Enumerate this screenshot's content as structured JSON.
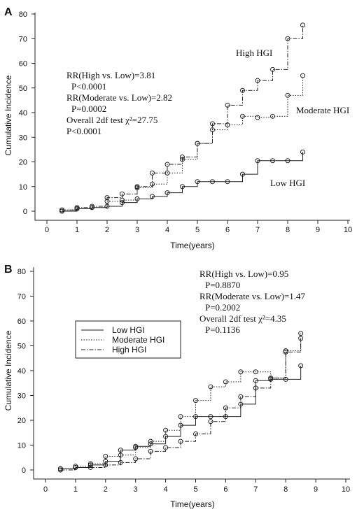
{
  "chart_data": [
    {
      "type": "line",
      "panel_label": "A",
      "xlabel": "Time(years)",
      "ylabel": "Cumulative Incidence",
      "xlim": [
        0,
        10
      ],
      "ylim": [
        0,
        80
      ],
      "xticks": [
        "0",
        "1",
        "2",
        "3",
        "4",
        "5",
        "6",
        "7",
        "8",
        "9",
        "10"
      ],
      "yticks": [
        "0",
        "10",
        "20",
        "30",
        "40",
        "50",
        "60",
        "70",
        "80"
      ],
      "annotations": [
        {
          "text": "RR(High vs. Low)=3.81"
        },
        {
          "text": "P<0.0001"
        },
        {
          "text": "RR(Moderate vs. Low)=2.82"
        },
        {
          "text": "P=0.0002"
        },
        {
          "text": "Overall 2df test χ²=27.75"
        },
        {
          "text": "P<0.0001"
        }
      ],
      "series": [
        {
          "name": "High HGI",
          "line_style": "dash-dot",
          "x": [
            0.5,
            1,
            1.5,
            2,
            2.5,
            3,
            3.5,
            4,
            4.5,
            5,
            5.5,
            6,
            6.5,
            7,
            7.5,
            8,
            8.5
          ],
          "y": [
            0.5,
            1.5,
            2,
            5.5,
            7,
            10,
            15.5,
            19,
            22,
            27.5,
            35.5,
            43,
            49,
            53,
            57.5,
            70,
            75.5
          ]
        },
        {
          "name": "Moderate HGI",
          "line_style": "dotted",
          "x": [
            0.5,
            1,
            1.5,
            2,
            2.5,
            3,
            3.5,
            4,
            4.5,
            5,
            5.5,
            6,
            6.5,
            7,
            7.5,
            8,
            8.5
          ],
          "y": [
            0.5,
            1,
            1.5,
            4,
            4.5,
            9.5,
            11,
            15.5,
            21,
            27.5,
            33,
            35,
            38.5,
            38,
            38.5,
            47,
            55
          ]
        },
        {
          "name": "Low HGI",
          "line_style": "solid",
          "x": [
            0.5,
            1,
            1.5,
            2,
            2.5,
            3,
            3.5,
            4,
            4.5,
            5,
            5.5,
            6,
            6.5,
            7,
            7.5,
            8,
            8.5
          ],
          "y": [
            0,
            1,
            1.5,
            2,
            3.5,
            5,
            6,
            7.5,
            10,
            12,
            12,
            12,
            15,
            20.5,
            20.5,
            20.5,
            24
          ]
        }
      ]
    },
    {
      "type": "line",
      "panel_label": "B",
      "xlabel": "Time(years)",
      "ylabel": "Cumulative Incidence",
      "xlim": [
        0,
        10
      ],
      "ylim": [
        0,
        80
      ],
      "xticks": [
        "0",
        "1",
        "2",
        "3",
        "4",
        "5",
        "6",
        "7",
        "8",
        "9",
        "10"
      ],
      "yticks": [
        "0",
        "10",
        "20",
        "30",
        "40",
        "50",
        "60",
        "70",
        "80"
      ],
      "legend": {
        "placement": "upper-left",
        "entries": [
          "Low HGI",
          "Moderate HGI",
          "High HGI"
        ]
      },
      "annotations": [
        {
          "text": "RR(High vs. Low)=0.95"
        },
        {
          "text": "P=0.8870"
        },
        {
          "text": "RR(Moderate vs. Low)=1.47"
        },
        {
          "text": "P=0.2002"
        },
        {
          "text": "Overall 2df test χ²=4.35"
        },
        {
          "text": "P=0.1136"
        }
      ],
      "series": [
        {
          "name": "Low HGI",
          "line_style": "solid",
          "x": [
            0.5,
            1,
            1.5,
            2,
            2.5,
            3,
            3.5,
            4,
            4.5,
            5,
            5.5,
            6,
            6.5,
            7,
            7.5,
            8,
            8.5
          ],
          "y": [
            0.5,
            1,
            2,
            3.5,
            8,
            9.5,
            10.5,
            13.5,
            18,
            21.5,
            21.5,
            21.5,
            26.5,
            36,
            36.5,
            36.5,
            42
          ]
        },
        {
          "name": "Moderate HGI",
          "line_style": "dotted",
          "x": [
            0.5,
            1,
            1.5,
            2,
            2.5,
            3,
            3.5,
            4,
            4.5,
            5,
            5.5,
            6,
            6.5,
            7,
            7.5,
            8,
            8.5
          ],
          "y": [
            0.5,
            1.5,
            2.5,
            5.5,
            6,
            9,
            11.5,
            16,
            21.5,
            28,
            33.5,
            35.5,
            39.5,
            39.5,
            37,
            48,
            55
          ]
        },
        {
          "name": "High HGI",
          "line_style": "dash-dot",
          "x": [
            0.5,
            1,
            1.5,
            2,
            2.5,
            3,
            3.5,
            4,
            4.5,
            5,
            5.5,
            6,
            6.5,
            7,
            7.5,
            8,
            8.5
          ],
          "y": [
            0,
            1,
            1,
            2,
            3,
            4.5,
            7.5,
            9,
            11.5,
            14.5,
            19.5,
            25,
            29.5,
            33,
            37,
            47.5,
            53
          ]
        }
      ]
    }
  ]
}
